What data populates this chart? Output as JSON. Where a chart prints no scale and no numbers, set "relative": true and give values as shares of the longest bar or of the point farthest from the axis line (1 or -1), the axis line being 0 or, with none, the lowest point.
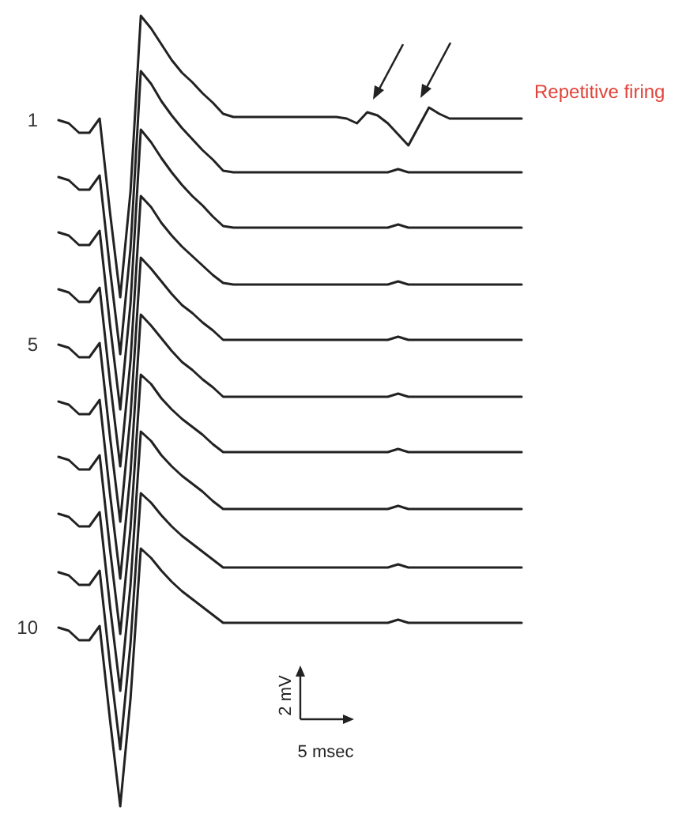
{
  "chart_data": {
    "type": "line",
    "relative": true,
    "categories": [
      null,
      null,
      null,
      null,
      null,
      null,
      null,
      null,
      null,
      null,
      null,
      null,
      null,
      null,
      null,
      null,
      null,
      null,
      null,
      null,
      null,
      null,
      null,
      null,
      null,
      null,
      null,
      null,
      null,
      null,
      null,
      null,
      null,
      null,
      null,
      null,
      null,
      null,
      null,
      null,
      null,
      null,
      null,
      null,
      null,
      null
    ],
    "series": [
      {
        "name": "1",
        "color": "#222222",
        "values": [
          0.868,
          0.864,
          0.852,
          0.852,
          0.87,
          0.752,
          0.644,
          0.778,
          1,
          0.984,
          0.964,
          0.944,
          0.928,
          0.916,
          0.902,
          0.89,
          0.876,
          0.872,
          0.872,
          0.872,
          0.872,
          0.872,
          0.872,
          0.872,
          0.872,
          0.872,
          0.872,
          0.872,
          0.87,
          0.864,
          0.878,
          0.874,
          0.864,
          0.85,
          0.836,
          0.86,
          0.884,
          0.876,
          0.87,
          0.87,
          0.87,
          0.87,
          0.87,
          0.87,
          0.87,
          0.87
        ]
      },
      {
        "color": "#222222",
        "values": [
          0.796,
          0.792,
          0.78,
          0.78,
          0.798,
          0.68,
          0.572,
          0.706,
          0.93,
          0.914,
          0.892,
          0.874,
          0.858,
          0.844,
          0.83,
          0.818,
          0.804,
          0.802,
          0.802,
          0.802,
          0.802,
          0.802,
          0.802,
          0.802,
          0.802,
          0.802,
          0.802,
          0.802,
          0.802,
          0.802,
          0.802,
          0.802,
          0.802,
          0.806,
          0.802,
          0.802,
          0.802,
          0.802,
          0.802,
          0.802,
          0.802,
          0.802,
          0.802,
          0.802,
          0.802,
          0.802
        ]
      },
      {
        "color": "#222222",
        "values": [
          0.726,
          0.722,
          0.71,
          0.71,
          0.728,
          0.61,
          0.502,
          0.636,
          0.856,
          0.84,
          0.82,
          0.802,
          0.786,
          0.772,
          0.76,
          0.746,
          0.734,
          0.732,
          0.732,
          0.732,
          0.732,
          0.732,
          0.732,
          0.732,
          0.732,
          0.732,
          0.732,
          0.732,
          0.732,
          0.732,
          0.732,
          0.732,
          0.732,
          0.736,
          0.732,
          0.732,
          0.732,
          0.732,
          0.732,
          0.732,
          0.732,
          0.732,
          0.732,
          0.732,
          0.732,
          0.732
        ]
      },
      {
        "color": "#222222",
        "values": [
          0.654,
          0.65,
          0.638,
          0.638,
          0.656,
          0.538,
          0.43,
          0.564,
          0.772,
          0.758,
          0.738,
          0.722,
          0.708,
          0.696,
          0.684,
          0.672,
          0.662,
          0.66,
          0.66,
          0.66,
          0.66,
          0.66,
          0.66,
          0.66,
          0.66,
          0.66,
          0.66,
          0.66,
          0.66,
          0.66,
          0.66,
          0.66,
          0.66,
          0.664,
          0.66,
          0.66,
          0.66,
          0.66,
          0.66,
          0.66,
          0.66,
          0.66,
          0.66,
          0.66,
          0.66,
          0.66
        ]
      },
      {
        "name": "5",
        "color": "#222222",
        "values": [
          0.584,
          0.58,
          0.568,
          0.568,
          0.586,
          0.468,
          0.36,
          0.494,
          0.694,
          0.68,
          0.664,
          0.648,
          0.634,
          0.624,
          0.612,
          0.602,
          0.59,
          0.59,
          0.59,
          0.59,
          0.59,
          0.59,
          0.59,
          0.59,
          0.59,
          0.59,
          0.59,
          0.59,
          0.59,
          0.59,
          0.59,
          0.59,
          0.59,
          0.594,
          0.59,
          0.59,
          0.59,
          0.59,
          0.59,
          0.59,
          0.59,
          0.59,
          0.59,
          0.59,
          0.59,
          0.59
        ]
      },
      {
        "color": "#222222",
        "values": [
          0.512,
          0.508,
          0.496,
          0.496,
          0.514,
          0.396,
          0.288,
          0.422,
          0.622,
          0.608,
          0.592,
          0.576,
          0.562,
          0.552,
          0.54,
          0.53,
          0.518,
          0.518,
          0.518,
          0.518,
          0.518,
          0.518,
          0.518,
          0.518,
          0.518,
          0.518,
          0.518,
          0.518,
          0.518,
          0.518,
          0.518,
          0.518,
          0.518,
          0.522,
          0.518,
          0.518,
          0.518,
          0.518,
          0.518,
          0.518,
          0.518,
          0.518,
          0.518,
          0.518,
          0.518,
          0.518
        ]
      },
      {
        "color": "#222222",
        "values": [
          0.442,
          0.438,
          0.426,
          0.426,
          0.444,
          0.326,
          0.218,
          0.352,
          0.546,
          0.534,
          0.516,
          0.502,
          0.49,
          0.48,
          0.47,
          0.458,
          0.448,
          0.448,
          0.448,
          0.448,
          0.448,
          0.448,
          0.448,
          0.448,
          0.448,
          0.448,
          0.448,
          0.448,
          0.448,
          0.448,
          0.448,
          0.448,
          0.448,
          0.452,
          0.448,
          0.448,
          0.448,
          0.448,
          0.448,
          0.448,
          0.448,
          0.448,
          0.448,
          0.448,
          0.448,
          0.448
        ]
      },
      {
        "color": "#222222",
        "values": [
          0.37,
          0.366,
          0.354,
          0.354,
          0.372,
          0.254,
          0.146,
          0.28,
          0.474,
          0.462,
          0.444,
          0.43,
          0.418,
          0.408,
          0.398,
          0.386,
          0.376,
          0.376,
          0.376,
          0.376,
          0.376,
          0.376,
          0.376,
          0.376,
          0.376,
          0.376,
          0.376,
          0.376,
          0.376,
          0.376,
          0.376,
          0.376,
          0.376,
          0.38,
          0.376,
          0.376,
          0.376,
          0.376,
          0.376,
          0.376,
          0.376,
          0.376,
          0.376,
          0.376,
          0.376,
          0.376
        ]
      },
      {
        "color": "#222222",
        "values": [
          0.296,
          0.292,
          0.28,
          0.28,
          0.298,
          0.18,
          0.072,
          0.206,
          0.396,
          0.384,
          0.368,
          0.354,
          0.342,
          0.332,
          0.322,
          0.312,
          0.302,
          0.302,
          0.302,
          0.302,
          0.302,
          0.302,
          0.302,
          0.302,
          0.302,
          0.302,
          0.302,
          0.302,
          0.302,
          0.302,
          0.302,
          0.302,
          0.302,
          0.306,
          0.302,
          0.302,
          0.302,
          0.302,
          0.302,
          0.302,
          0.302,
          0.302,
          0.302,
          0.302,
          0.302,
          0.302
        ]
      },
      {
        "name": "10",
        "color": "#222222",
        "values": [
          0.226,
          0.222,
          0.21,
          0.21,
          0.228,
          0.11,
          0,
          0.136,
          0.326,
          0.314,
          0.298,
          0.284,
          0.272,
          0.262,
          0.252,
          0.242,
          0.232,
          0.232,
          0.232,
          0.232,
          0.232,
          0.232,
          0.232,
          0.232,
          0.232,
          0.232,
          0.232,
          0.232,
          0.232,
          0.232,
          0.232,
          0.232,
          0.232,
          0.236,
          0.232,
          0.232,
          0.232,
          0.232,
          0.232,
          0.232,
          0.232,
          0.232,
          0.232,
          0.232,
          0.232,
          0.232
        ]
      }
    ],
    "annotations": [
      "Repetitive firing",
      "2 mV",
      "5 msec"
    ]
  }
}
